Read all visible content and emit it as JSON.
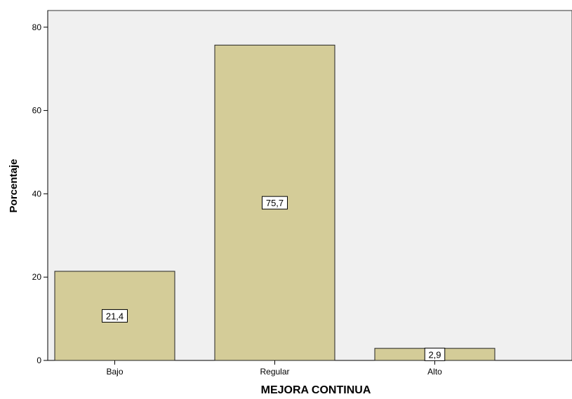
{
  "chart_data": {
    "type": "bar",
    "categories": [
      "Bajo",
      "Regular",
      "Alto"
    ],
    "values": [
      21.4,
      75.7,
      2.9
    ],
    "data_labels": [
      "21,4",
      "75,7",
      "2,9"
    ],
    "title": "",
    "xlabel": "MEJORA CONTINUA",
    "ylabel": "Porcentaje",
    "ylim": [
      0,
      84
    ],
    "yticks": [
      0,
      20,
      40,
      60,
      80
    ],
    "grid": false,
    "colors": {
      "bar_fill": "#d4cc98",
      "bar_stroke": "#222222",
      "plot_background": "#f0f0f0",
      "plot_border": "#333333"
    }
  }
}
